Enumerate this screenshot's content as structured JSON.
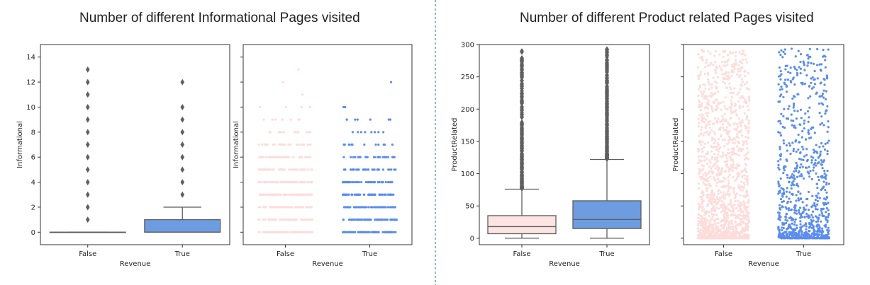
{
  "titles": {
    "left": "Number of different Informational Pages visited",
    "right": "Number of different Product related Pages visited"
  },
  "colors": {
    "false_fill": "#fce4e2",
    "true_fill": "#6d9ce1",
    "false_point": "#fddcda",
    "true_point": "#5b8def",
    "line": "#5f5f5f",
    "divider": "#2b6f8a"
  },
  "chart_data": [
    {
      "type": "box",
      "xlabel": "Revenue",
      "ylabel": "Informational",
      "categories": [
        "False",
        "True"
      ],
      "ylim": [
        -1,
        15
      ],
      "yticks": [
        0,
        2,
        4,
        6,
        8,
        10,
        12,
        14
      ],
      "boxes": [
        {
          "q1": 0,
          "median": 0,
          "q3": 0,
          "whisker_low": 0,
          "whisker_high": 0,
          "outliers": [
            1,
            2,
            3,
            4,
            5,
            6,
            7,
            8,
            9,
            10,
            11,
            12,
            13
          ]
        },
        {
          "q1": 0,
          "median": 0,
          "q3": 1,
          "whisker_low": 0,
          "whisker_high": 2,
          "outliers": [
            3,
            4,
            5,
            6,
            7,
            8,
            9,
            10,
            12
          ]
        }
      ]
    },
    {
      "type": "strip",
      "xlabel": "Revenue",
      "ylabel": "Informational",
      "categories": [
        "False",
        "True"
      ],
      "ylim": [
        -1,
        15
      ],
      "series": [
        {
          "category": "False",
          "levels": [
            {
              "y": 0,
              "density": 1.0
            },
            {
              "y": 1,
              "density": 1.0
            },
            {
              "y": 2,
              "density": 1.0
            },
            {
              "y": 3,
              "density": 0.95
            },
            {
              "y": 4,
              "density": 0.85
            },
            {
              "y": 5,
              "density": 0.7
            },
            {
              "y": 6,
              "density": 0.6
            },
            {
              "y": 7,
              "density": 0.4
            },
            {
              "y": 8,
              "density": 0.2
            },
            {
              "y": 9,
              "density": 0.1
            },
            {
              "y": 10,
              "density": 0.05
            },
            {
              "y": 11,
              "density": 0.02
            },
            {
              "y": 12,
              "density": 0.02
            },
            {
              "y": 13,
              "density": 0.02
            }
          ]
        },
        {
          "category": "True",
          "levels": [
            {
              "y": 0,
              "density": 1.0
            },
            {
              "y": 1,
              "density": 1.0
            },
            {
              "y": 2,
              "density": 0.95
            },
            {
              "y": 3,
              "density": 0.9
            },
            {
              "y": 4,
              "density": 0.7
            },
            {
              "y": 5,
              "density": 0.5
            },
            {
              "y": 6,
              "density": 0.35
            },
            {
              "y": 7,
              "density": 0.2
            },
            {
              "y": 8,
              "density": 0.12
            },
            {
              "y": 9,
              "density": 0.1
            },
            {
              "y": 10,
              "density": 0.03
            },
            {
              "y": 12,
              "density": 0.02
            }
          ]
        }
      ]
    },
    {
      "type": "box",
      "xlabel": "Revenue",
      "ylabel": "ProductRelated",
      "categories": [
        "False",
        "True"
      ],
      "ylim": [
        -10,
        300
      ],
      "yticks": [
        0,
        50,
        100,
        150,
        200,
        250,
        300
      ],
      "boxes": [
        {
          "q1": 7,
          "median": 18,
          "q3": 35,
          "whisker_low": 0,
          "whisker_high": 76,
          "outlier_range": [
            77,
            290
          ]
        },
        {
          "q1": 15,
          "median": 29,
          "q3": 58,
          "whisker_low": 0,
          "whisker_high": 122,
          "outlier_range": [
            123,
            293
          ]
        }
      ]
    },
    {
      "type": "strip",
      "xlabel": "Revenue",
      "ylabel": "ProductRelated",
      "categories": [
        "False",
        "True"
      ],
      "ylim": [
        -10,
        300
      ],
      "series": [
        {
          "category": "False",
          "min": 0,
          "max": 292
        },
        {
          "category": "True",
          "min": 0,
          "max": 294
        }
      ]
    }
  ]
}
